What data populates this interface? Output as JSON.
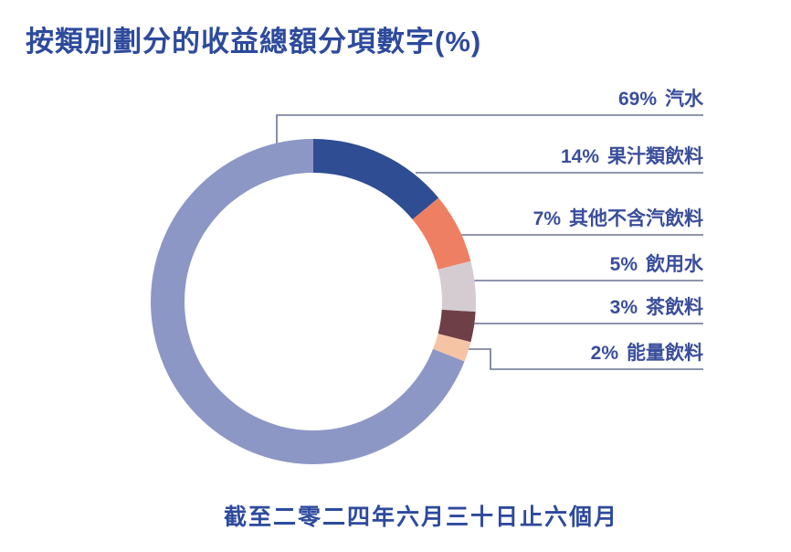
{
  "title": "按類別劃分的收益總額分項數字(%)",
  "caption": "截至二零二四年六月三十日止六個月",
  "colors": {
    "title_text": "#2d4a9d",
    "label_text": "#3a4e9b",
    "leader_line": "#6a7390",
    "background": "#ffffff"
  },
  "chart_data": {
    "type": "pie",
    "subtype": "donut",
    "title": "按類別劃分的收益總額分項數字(%)",
    "caption": "截至二零二四年六月三十日止六個月",
    "unit": "%",
    "legend_position": "right",
    "start_angle": "12-o-clock, small segments drawn clockwise, largest segment fills remainder back to top",
    "segments": [
      {
        "label": "汽水",
        "value": 69,
        "pct_text": "69%",
        "color": "#8d97c5"
      },
      {
        "label": "果汁類飲料",
        "value": 14,
        "pct_text": "14%",
        "color": "#2e4d92"
      },
      {
        "label": "其他不含汽飲料",
        "value": 7,
        "pct_text": "7%",
        "color": "#ef7f63"
      },
      {
        "label": "飲用水",
        "value": 5,
        "pct_text": "5%",
        "color": "#d5ccd2"
      },
      {
        "label": "茶飲料",
        "value": 3,
        "pct_text": "3%",
        "color": "#6e3f46"
      },
      {
        "label": "能量飲料",
        "value": 2,
        "pct_text": "2%",
        "color": "#f4c4a4"
      }
    ]
  }
}
